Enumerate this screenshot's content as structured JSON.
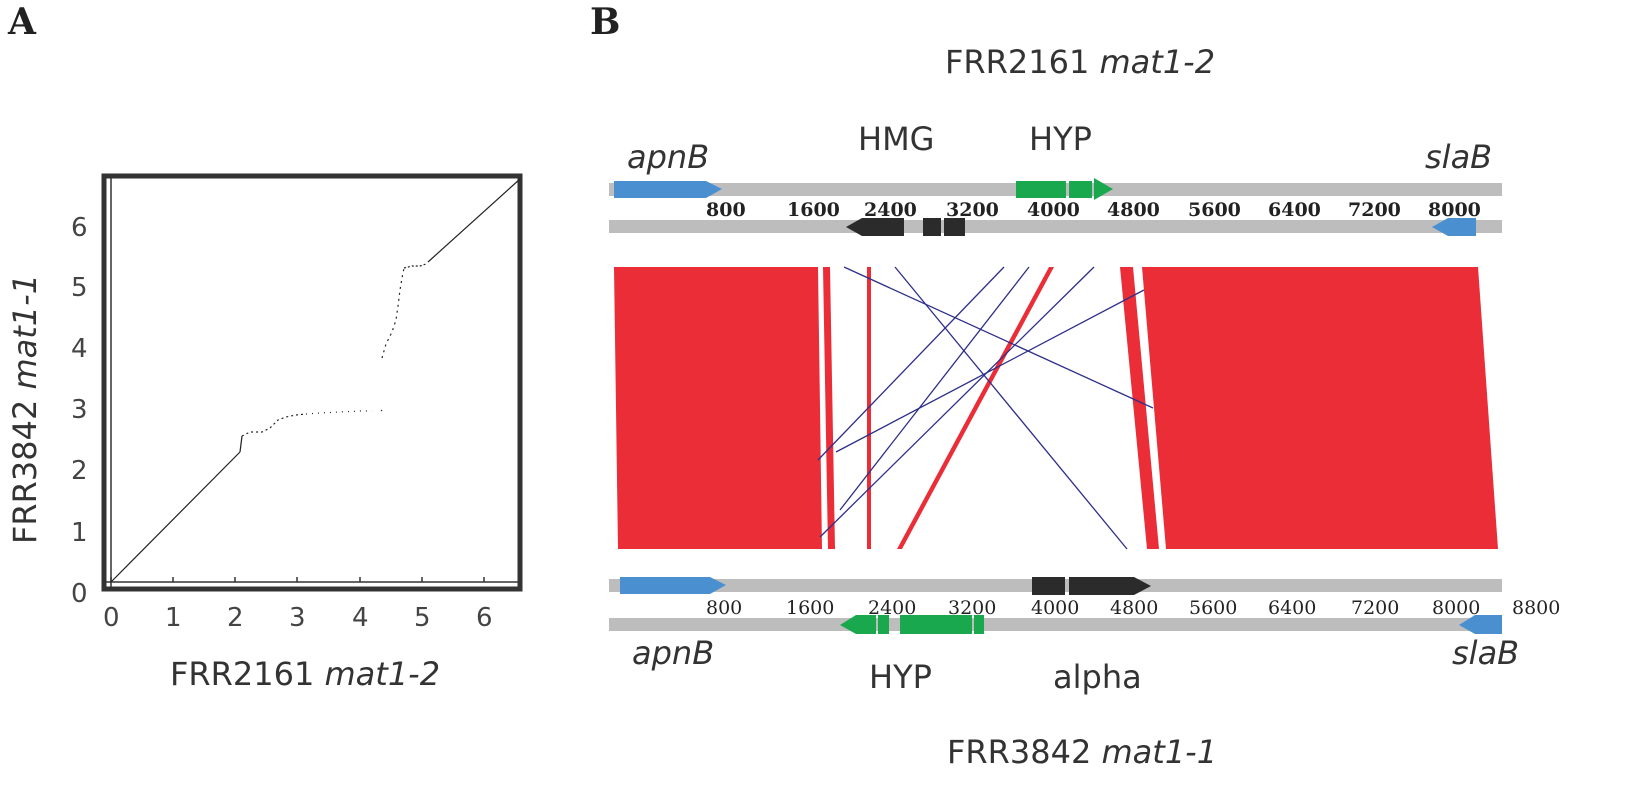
{
  "panel_a": {
    "letter": "A",
    "xlabel_main": "FRR2161",
    "xlabel_italic": "mat1-2",
    "ylabel_main": "FRR3842",
    "ylabel_italic": "mat1-1",
    "x_ticks": [
      "0",
      "1",
      "2",
      "3",
      "4",
      "5",
      "6"
    ],
    "y_ticks": [
      "0",
      "1",
      "2",
      "3",
      "4",
      "5",
      "6"
    ]
  },
  "panel_b": {
    "letter": "B",
    "top_title_main": "FRR2161",
    "top_title_italic": "mat1-2",
    "bottom_title_main": "FRR3842",
    "bottom_title_italic": "mat1-1",
    "top_genes": {
      "apnB": "apnB",
      "slaB": "slaB",
      "HMG": "HMG",
      "HYP": "HYP"
    },
    "bottom_genes": {
      "apnB": "apnB",
      "slaB": "slaB",
      "HYP": "HYP",
      "alpha": "alpha"
    },
    "top_coords": [
      "800",
      "1600",
      "2400",
      "3200",
      "4000",
      "4800",
      "5600",
      "6400",
      "7200",
      "8000"
    ],
    "bottom_coords": [
      "800",
      "1600",
      "2400",
      "3200",
      "4000",
      "4800",
      "5600",
      "6400",
      "7200",
      "8000",
      "8800"
    ]
  },
  "colors": {
    "blue_arrow": "#4a90d0",
    "green_arrow": "#1aa84f",
    "dark_arrow": "#2b2b2b",
    "track": "#bdbdbd",
    "red_block": "#ea2d37",
    "navy_line": "#2e2e8a"
  },
  "chart_data": {
    "type": "scatter",
    "title": "",
    "xlabel": "FRR2161 mat1-2",
    "ylabel": "FRR3842 mat1-1",
    "xlim": [
      0,
      6.5
    ],
    "ylim": [
      0,
      6.8
    ],
    "series": [
      {
        "values": [
          [
            0.0,
            0.0
          ],
          [
            2.1,
            2.1
          ],
          [
            2.2,
            2.5
          ],
          [
            2.5,
            2.55
          ],
          [
            2.75,
            2.75
          ],
          [
            3.6,
            2.82
          ],
          [
            4.35,
            2.85
          ],
          [
            4.4,
            3.8
          ],
          [
            4.6,
            4.2
          ],
          [
            4.7,
            4.7
          ],
          [
            4.75,
            5.2
          ],
          [
            5.0,
            5.3
          ],
          [
            6.5,
            6.8
          ]
        ]
      }
    ]
  }
}
